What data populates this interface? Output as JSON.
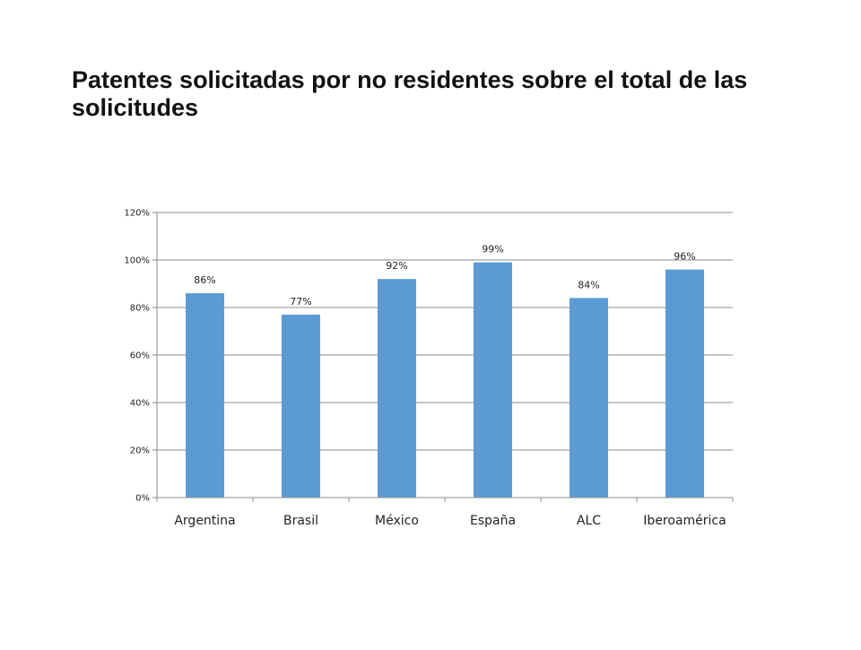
{
  "slide": {
    "title": "Patentes solicitadas por no residentes sobre el total de las solicitudes"
  },
  "chart_data": {
    "type": "bar",
    "title": "",
    "xlabel": "",
    "ylabel": "",
    "categories": [
      "Argentina",
      "Brasil",
      "México",
      "España",
      "ALC",
      "Iberoamérica"
    ],
    "values": [
      0.86,
      0.77,
      0.92,
      0.99,
      0.84,
      0.96
    ],
    "data_labels": [
      "86%",
      "77%",
      "92%",
      "99%",
      "84%",
      "96%"
    ],
    "y_ticks": [
      "0%",
      "20%",
      "40%",
      "60%",
      "80%",
      "100%",
      "120%"
    ],
    "ylim": [
      0,
      1.2
    ],
    "grid": true,
    "legend": "none",
    "colors": {
      "bar": "#5b9bd5",
      "grid": "#8c8c8c",
      "axis": "#8c8c8c",
      "text": "#222222"
    }
  }
}
